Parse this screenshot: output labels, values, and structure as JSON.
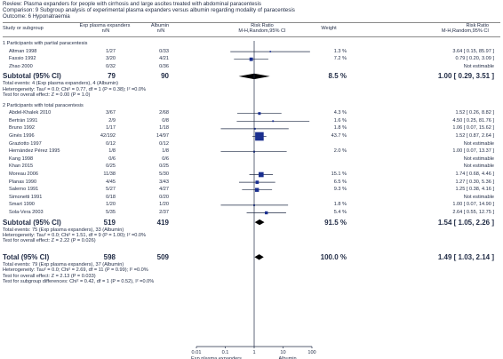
{
  "header": {
    "review": "Review:  Plasma expanders for people with cirrhosis and large ascites treated with abdominal paracentesis",
    "comparison": "Comparison:  9 Subgroup analysis of experimental plasma expanders versus albumin regarding modality of paracentesis",
    "outcome": "Outcome:  6 Hyponatraemia"
  },
  "columns": {
    "study": "Study or subgroup",
    "exp": "Exp plasma expanders",
    "exp_sub": "n/N",
    "alb": "Albumin",
    "alb_sub": "n/N",
    "rr": "Risk Ratio",
    "rr_sub": "M-H,Random,95% CI",
    "weight": "Weight",
    "rr2": "Risk Ratio",
    "rr2_sub": "M-H,Random,95% CI"
  },
  "chart_data": {
    "type": "forest",
    "scale": "log",
    "xlim": [
      0.01,
      100
    ],
    "ticks": [
      "0.01",
      "0.1",
      "1",
      "10",
      "100"
    ],
    "xlabel_left": "Exp plasma expanders",
    "xlabel_right": "Albumin",
    "subgroups": [
      {
        "title": "1 Participants with partial paracentesis",
        "studies": [
          {
            "name": "Altman 1998",
            "exp": "1/27",
            "alb": "0/33",
            "weight": "1.3 %",
            "ci": "3.64 [ 0.15, 85.97 ]",
            "rr": 3.64,
            "lo": 0.15,
            "hi": 85.97,
            "w": 1.3
          },
          {
            "name": "Fassio 1992",
            "exp": "3/20",
            "alb": "4/21",
            "weight": "7.2 %",
            "ci": "0.79 [ 0.20, 3.09 ]",
            "rr": 0.79,
            "lo": 0.2,
            "hi": 3.09,
            "w": 7.2
          },
          {
            "name": "Zhao  2000",
            "exp": "0/32",
            "alb": "0/36",
            "weight": "",
            "ci": "Not estimable",
            "rr": null,
            "lo": null,
            "hi": null,
            "w": 0
          }
        ],
        "subtotal": {
          "label": "Subtotal (95% CI)",
          "exp_total": "79",
          "alb_total": "90",
          "weight": "8.5 %",
          "ci": "1.00 [ 0.29, 3.51 ]",
          "rr": 1.0,
          "lo": 0.29,
          "hi": 3.51
        },
        "notes": [
          "Total events: 4 (Exp plasma expanders), 4 (Albumin)",
          "Heterogeneity: Tau² = 0.0; Chi² = 0.77, df = 1 (P = 0.38); I² =0.0%",
          "Test for overall effect: Z = 0.00 (P = 1.0)"
        ]
      },
      {
        "title": "2 Participants with total paracentesis",
        "studies": [
          {
            "name": "Abdel-Khalek 2010",
            "exp": "3/67",
            "alb": "2/68",
            "weight": "4.3 %",
            "ci": "1.52 [ 0.26, 8.82 ]",
            "rr": 1.52,
            "lo": 0.26,
            "hi": 8.82,
            "w": 4.3
          },
          {
            "name": "Bertrán 1991",
            "exp": "2/9",
            "alb": "0/8",
            "weight": "1.6 %",
            "ci": "4.50 [ 0.25, 81.76 ]",
            "rr": 4.5,
            "lo": 0.25,
            "hi": 81.76,
            "w": 1.6
          },
          {
            "name": "Bruno 1992",
            "exp": "1/17",
            "alb": "1/18",
            "weight": "1.8 %",
            "ci": "1.06 [ 0.07, 15.62 ]",
            "rr": 1.06,
            "lo": 0.07,
            "hi": 15.62,
            "w": 1.8
          },
          {
            "name": "Ginès 1996",
            "exp": "42/192",
            "alb": "14/97",
            "weight": "43.7 %",
            "ci": "1.52 [ 0.87, 2.64 ]",
            "rr": 1.52,
            "lo": 0.87,
            "hi": 2.64,
            "w": 43.7
          },
          {
            "name": "Graziotto 1997",
            "exp": "0/12",
            "alb": "0/12",
            "weight": "",
            "ci": "Not estimable",
            "rr": null,
            "lo": null,
            "hi": null,
            "w": 0
          },
          {
            "name": "Hernández Pérez 1995",
            "exp": "1/8",
            "alb": "1/8",
            "weight": "2.0 %",
            "ci": "1.00 [ 0.07, 13.37 ]",
            "rr": 1.0,
            "lo": 0.07,
            "hi": 13.37,
            "w": 2.0
          },
          {
            "name": "Kang 1998",
            "exp": "0/6",
            "alb": "0/6",
            "weight": "",
            "ci": "Not estimable",
            "rr": null,
            "lo": null,
            "hi": null,
            "w": 0
          },
          {
            "name": "Khan 2015",
            "exp": "0/25",
            "alb": "0/25",
            "weight": "",
            "ci": "Not estimable",
            "rr": null,
            "lo": null,
            "hi": null,
            "w": 0
          },
          {
            "name": "Moreau 2006",
            "exp": "11/38",
            "alb": "5/30",
            "weight": "15.1 %",
            "ci": "1.74 [ 0.68, 4.46 ]",
            "rr": 1.74,
            "lo": 0.68,
            "hi": 4.46,
            "w": 15.1
          },
          {
            "name": "Planas 1990",
            "exp": "4/45",
            "alb": "3/43",
            "weight": "6.5 %",
            "ci": "1.27 [ 0.30, 5.36 ]",
            "rr": 1.27,
            "lo": 0.3,
            "hi": 5.36,
            "w": 6.5
          },
          {
            "name": "Salerno 1991",
            "exp": "5/27",
            "alb": "4/27",
            "weight": "9.3 %",
            "ci": "1.25 [ 0.38, 4.16 ]",
            "rr": 1.25,
            "lo": 0.38,
            "hi": 4.16,
            "w": 9.3
          },
          {
            "name": "Simonetti 1991",
            "exp": "0/18",
            "alb": "0/20",
            "weight": "",
            "ci": "Not estimable",
            "rr": null,
            "lo": null,
            "hi": null,
            "w": 0
          },
          {
            "name": "Smart 1990",
            "exp": "1/20",
            "alb": "1/20",
            "weight": "1.8 %",
            "ci": "1.00 [ 0.07, 14.90 ]",
            "rr": 1.0,
            "lo": 0.07,
            "hi": 14.9,
            "w": 1.8
          },
          {
            "name": "Sola-Vera 2003",
            "exp": "5/35",
            "alb": "2/37",
            "weight": "5.4 %",
            "ci": "2.64 [ 0.55, 12.75 ]",
            "rr": 2.64,
            "lo": 0.55,
            "hi": 12.75,
            "w": 5.4
          }
        ],
        "subtotal": {
          "label": "Subtotal (95% CI)",
          "exp_total": "519",
          "alb_total": "419",
          "weight": "91.5 %",
          "ci": "1.54 [ 1.05, 2.26 ]",
          "rr": 1.54,
          "lo": 1.05,
          "hi": 2.26
        },
        "notes": [
          "Total events: 75 (Exp plasma expanders), 33 (Albumin)",
          "Heterogeneity: Tau² = 0.0; Chi² = 1.51, df = 9 (P = 1.00); I² =0.0%",
          "Test for overall effect: Z = 2.22 (P = 0.026)"
        ]
      }
    ],
    "total": {
      "label": "Total (95% CI)",
      "exp_total": "598",
      "alb_total": "509",
      "weight": "100.0 %",
      "ci": "1.49 [ 1.03, 2.14 ]",
      "rr": 1.49,
      "lo": 1.03,
      "hi": 2.14
    },
    "total_notes": [
      "Total events: 79 (Exp plasma expanders), 37 (Albumin)",
      "Heterogeneity: Tau² = 0.0; Chi² = 2.69, df = 11 (P = 0.99); I² =0.0%",
      "Test for overall effect: Z = 2.13 (P = 0.033)",
      "Test for subgroup differences: Chi² = 0.42, df = 1 (P = 0.52), I² =0.0%"
    ]
  }
}
